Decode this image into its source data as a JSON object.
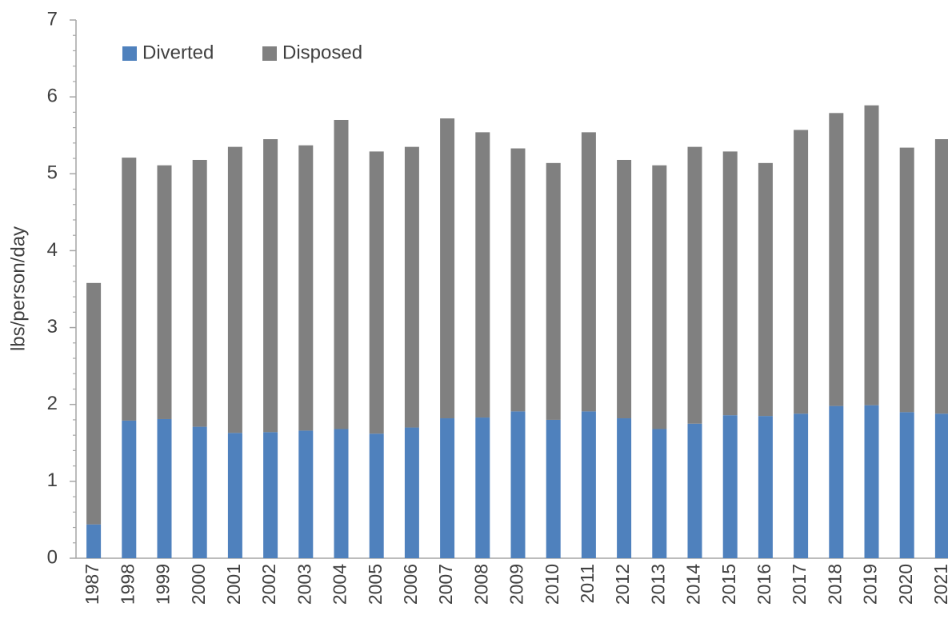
{
  "chart_data": {
    "type": "stacked_bar",
    "ylabel": "lbs/person/day",
    "categories": [
      "1987",
      "1998",
      "1999",
      "2000",
      "2001",
      "2002",
      "2003",
      "2004",
      "2005",
      "2006",
      "2007",
      "2008",
      "2009",
      "2010",
      "2011",
      "2012",
      "2013",
      "2014",
      "2015",
      "2016",
      "2017",
      "2018",
      "2019",
      "2020",
      "2021"
    ],
    "series": [
      {
        "name": "Diverted",
        "color": "#4f81bd",
        "values": [
          0.44,
          1.79,
          1.81,
          1.71,
          1.63,
          1.64,
          1.66,
          1.68,
          1.62,
          1.7,
          1.82,
          1.83,
          1.91,
          1.8,
          1.91,
          1.82,
          1.68,
          1.75,
          1.86,
          1.85,
          1.88,
          1.98,
          1.99,
          1.9,
          1.88
        ]
      },
      {
        "name": "Disposed",
        "color": "#808080",
        "values": [
          3.14,
          3.42,
          3.3,
          3.47,
          3.72,
          3.81,
          3.71,
          4.02,
          3.67,
          3.65,
          3.9,
          3.71,
          3.42,
          3.34,
          3.63,
          3.36,
          3.43,
          3.6,
          3.43,
          3.29,
          3.69,
          3.81,
          3.9,
          3.44,
          3.57
        ]
      }
    ],
    "ylim": [
      0,
      7
    ],
    "yticks": [
      0,
      1,
      2,
      3,
      4,
      5,
      6,
      7
    ],
    "grid": false,
    "legend": "top-left"
  }
}
